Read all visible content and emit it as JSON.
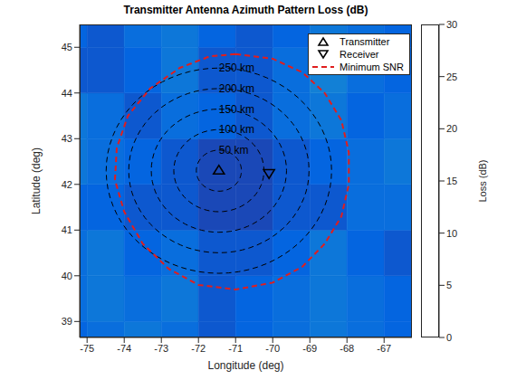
{
  "chart_data": {
    "type": "heatmap",
    "title": "Transmitter Antenna Azimuth Pattern Loss (dB)",
    "xlabel": "Longitude (deg)",
    "ylabel": "Latitude (deg)",
    "xlim": [
      -75.2,
      -66.25
    ],
    "xticks": [
      -75,
      -74,
      -73,
      -72,
      -71,
      -70,
      -69,
      -68,
      -67
    ],
    "ylim": [
      38.65,
      45.5
    ],
    "yticks": [
      39,
      40,
      41,
      42,
      43,
      44,
      45
    ],
    "grid": false,
    "legend": "upper right",
    "heatmap": {
      "lon_edges": [
        -76,
        -75,
        -74,
        -73,
        -72,
        -71,
        -70,
        -69,
        -68,
        -67,
        -66
      ],
      "lat_edges": [
        38,
        39,
        40,
        41,
        42,
        43,
        44,
        45,
        46
      ],
      "cells": [
        [
          4,
          5,
          6,
          5,
          3,
          4,
          5,
          6,
          5,
          4
        ],
        [
          5,
          6,
          5,
          6,
          3,
          4,
          5,
          6,
          5,
          4
        ],
        [
          5,
          6,
          4,
          5,
          3,
          3,
          4,
          6,
          4,
          3
        ],
        [
          4,
          4,
          3,
          3,
          2,
          2,
          3,
          3,
          5,
          5
        ],
        [
          6,
          5,
          4,
          3,
          2,
          2,
          3,
          4,
          5,
          6
        ],
        [
          6,
          5,
          3,
          5,
          4,
          3,
          5,
          6,
          4,
          5
        ],
        [
          3,
          3,
          4,
          6,
          3,
          3,
          5,
          7,
          5,
          4
        ],
        [
          4,
          3,
          5,
          6,
          4,
          3,
          4,
          6,
          5,
          4
        ]
      ]
    },
    "colorbar": {
      "label": "Loss (dB)",
      "range": [
        0,
        30
      ],
      "ticks": [
        0,
        5,
        10,
        15,
        20,
        25,
        30
      ]
    },
    "range_rings": {
      "color": "#000000",
      "line_style": "dashed",
      "center": [
        -71.45,
        42.3
      ],
      "radii_km": [
        50,
        100,
        150,
        200,
        250
      ],
      "labels": [
        "50 km",
        "100 km",
        "150 km",
        "200 km",
        "250 km"
      ]
    },
    "series": [
      {
        "name": "Transmitter",
        "type": "scatter",
        "marker": "triangle-up",
        "color": "#000000",
        "x": [
          -71.45
        ],
        "y": [
          42.3
        ]
      },
      {
        "name": "Receiver",
        "type": "scatter",
        "marker": "triangle-down",
        "color": "#000000",
        "x": [
          -70.1
        ],
        "y": [
          42.25
        ]
      },
      {
        "name": "Minimum SNR",
        "type": "line",
        "color": "#e01e1e",
        "line_style": "dashed",
        "x": [
          -71.0,
          -70.0,
          -69.2,
          -68.6,
          -68.15,
          -67.95,
          -67.95,
          -68.15,
          -68.6,
          -69.2,
          -70.0,
          -71.0,
          -72.0,
          -72.8,
          -73.5,
          -74.0,
          -74.25,
          -74.2,
          -73.9,
          -73.3,
          -72.5,
          -71.7,
          -71.0
        ],
        "y": [
          44.85,
          44.75,
          44.45,
          44.0,
          43.4,
          42.7,
          42.0,
          41.3,
          40.7,
          40.2,
          39.85,
          39.7,
          39.8,
          40.15,
          40.7,
          41.4,
          42.1,
          42.8,
          43.5,
          44.1,
          44.55,
          44.8,
          44.85
        ]
      }
    ]
  }
}
